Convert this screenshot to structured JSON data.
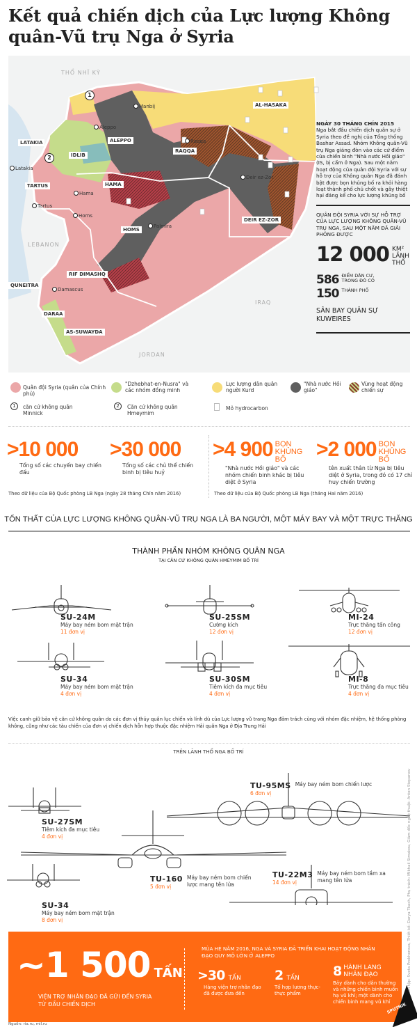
{
  "title": "Kết quả chiến dịch của Lực lượng Không quân-Vũ trụ Nga ở Syria",
  "map": {
    "countries": {
      "turkey": "THỔ NHĨ KỲ",
      "lebanon": "LEBANON",
      "iraq": "IRAQ",
      "jordan": "JORDAN"
    },
    "regions": {
      "latakia": "LATAKIA",
      "idlib": "IDLIB",
      "aleppo": "ALEPPO",
      "raqqa": "RAQQA",
      "al_hasaka": "AL-HASAKA",
      "tartus": "TARTUS",
      "hama": "HAMA",
      "homs": "HOMS",
      "deir_ez_zor": "DEIR EZ-ZOR",
      "rif_dimashq": "RIF DIMASHQ",
      "quneitra": "QUNEITRA",
      "daraa": "DARAA",
      "as_suwayda": "AS-SUWAYDA"
    },
    "cities": {
      "manbij": "Manbij",
      "aleppo": "Aleppo",
      "raqqa": "Raqqa",
      "latakia": "Latakia",
      "hama": "Hama",
      "tartus": "Tartus",
      "homs": "Homs",
      "palmira": "Palmira",
      "deir_ez_zor": "Deir ez-Zor",
      "damascus": "Damascus"
    },
    "markers": {
      "m1": "1",
      "m2": "2"
    },
    "colors": {
      "government": "#eba7a8",
      "nusra": "#c5dc8b",
      "kurd": "#f7dc78",
      "is": "#5f5f5f",
      "contested": "#8b3a2a"
    }
  },
  "panel": {
    "date": "NGÀY 30 THÁNG CHÍN 2015",
    "text": "Nga bắt đầu chiến dịch quân sự ở Syria theo đề nghị của Tổng thống Bashar Assad. Nhóm Không quân-Vũ trụ Nga giáng đòn vào các cứ điểm của chiến binh \"Nhà nước Hồi giáo\" (IS, bị cấm ở Nga). Sau một năm hoạt động của quân đội Syria với sự hỗ trợ của Không quân Nga đã đánh bật được bọn khủng bố ra khỏi hàng loạt thành phố chủ chốt và gây thiệt hại đáng kể cho lực lượng khủng bố",
    "liberated_intro": "QUÂN ĐỘI SYRIA VỚI SỰ HỖ TRỢ CỦA LỰC LƯỢNG KHÔNG QUÂN-VŨ TRỤ NGA, SAU MỘT NĂM ĐÃ GIẢI PHÓNG ĐƯỢC",
    "area_value": "12 000",
    "area_unit": "KM²",
    "area_label": "LÃNH THỔ",
    "settlements_value": "586",
    "settlements_label": "ĐIỂM DÂN CƯ, TRONG ĐÓ CÓ",
    "cities_value": "150",
    "cities_label": "THÀNH PHỐ",
    "airbase": "SÂN BAY QUÂN SỰ KUWEIRES"
  },
  "legend": [
    {
      "label": "Quân đội Syria (quân của Chính phủ)"
    },
    {
      "label": "\"Dzhebhat-en-Nusra\" và các nhóm đồng minh"
    },
    {
      "label": "Lực lượng dân quân người Kurd"
    },
    {
      "label": "\"Nhà nước Hồi giáo\""
    },
    {
      "label": "Vùng hoạt động chiến sự"
    },
    {
      "num": "1",
      "label": "căn cứ không quân Minnick"
    },
    {
      "num": "2",
      "label": "Căn cứ không quân Hmeymim"
    },
    {
      "label": "Mỏ hydrocarbon"
    }
  ],
  "stats": [
    {
      "prefix": ">",
      "value": "10 000",
      "unit": "",
      "desc": "Tổng số các chuyến bay chiến đấu"
    },
    {
      "prefix": ">",
      "value": "30 000",
      "unit": "",
      "desc": "Tổng số các chủ thể chiến binh bị tiêu huỷ"
    },
    {
      "prefix": ">",
      "value": "4 900",
      "unit": "BỌN KHỦNG BỐ",
      "desc": "\"Nhà nước Hồi giáo\" và các nhóm chiến binh khác bị tiêu diệt ở Syria"
    },
    {
      "prefix": ">",
      "value": "2 000",
      "unit": "BỌN KHỦNG BỐ",
      "desc": "tên xuất thân từ Nga bị tiêu diệt ở Syria, trong đó có 17 chỉ huy chiến trường"
    }
  ],
  "notes": {
    "left": "Theo dữ liệu của Bộ Quốc phòng LB Nga (ngày 28 tháng Chín năm 2016)",
    "right": "Theo dữ liệu của Bộ Quốc phòng LB Nga (tháng Hai năm 2016)"
  },
  "losses_heading": "TỔN THẤT CỦA LỰC LƯỢNG KHÔNG QUÂN-VŨ TRỤ NGA LÀ BA NGƯỜI, MỘT MÁY BAY VÀ MỘT TRỰC THĂNG",
  "group": {
    "title": "THÀNH PHẦN NHÓM KHÔNG QUÂN NGA",
    "subtitle": "TẠI CĂN CỨ KHÔNG QUÂN HMEYMIM BỐ TRÍ"
  },
  "hmeymim": [
    {
      "name": "SU-24M",
      "desc": "Máy bay ném bom mặt trận",
      "units": "11 đơn vị"
    },
    {
      "name": "SU-25SM",
      "desc": "Cường kích",
      "units": "12 đơn vị"
    },
    {
      "name": "MI-24",
      "desc": "Trực thăng tấn công",
      "units": "12 đơn vị"
    },
    {
      "name": "SU-34",
      "desc": "Máy bay ném bom mặt trận",
      "units": "4 đơn vị"
    },
    {
      "name": "SU-30SM",
      "desc": "Tiêm kích đa mục tiêu",
      "units": "4 đơn vị"
    },
    {
      "name": "MI-8",
      "desc": "Trực thăng đa mục tiêu",
      "units": "4 đơn vị"
    }
  ],
  "guard_text": "Việc canh giữ bảo vệ căn cứ không quân do các đơn vị thủy quân lục chiến và lính dù của Lực lượng vũ trang Nga đảm trách cùng với nhóm đặc nhiệm, hệ thống phòng không, cũng như các tàu chiến của đơn vị chiến dịch hỗn hợp thuộc đặc nhiệm Hải quân Nga ở Địa Trung Hải",
  "russia_heading": "TRÊN LÃNH THỔ NGA BỐ TRÍ",
  "russia": [
    {
      "name": "SU-27SM",
      "desc": "Tiêm kích đa mục tiêu",
      "units": "4 đơn vị"
    },
    {
      "name": "SU-34",
      "desc": "Máy bay ném bom mặt trận",
      "units": "8 đơn vị"
    },
    {
      "name": "TU-160",
      "desc": "Máy bay ném bom chiến lược mang tên lửa",
      "units": "5 đơn vị"
    },
    {
      "name": "TU-95MS",
      "desc": "Máy bay ném bom chiến lược",
      "units": "6 đơn vị"
    },
    {
      "name": "TU-22M3",
      "desc": "Máy bay ném bom tầm xa mang tên lửa",
      "units": "14 đơn vị"
    }
  ],
  "aid": {
    "value": "~1 500",
    "unit": "TẤN",
    "desc": "VIỆN TRỢ NHÂN ĐẠO ĐÃ GỬI ĐẾN SYRIA TỪ ĐẦU CHIẾN DỊCH",
    "aleppo_heading": "MÙA HÈ NĂM 2016, NGA VÀ SYRIA ĐÃ TRIỂN KHAI HOẠT ĐỘNG NHÂN ĐẠO QUY MÔ LỚN Ở ALEPPO",
    "items": [
      {
        "value": ">30",
        "unit": "TẤN",
        "desc": "Hàng viện trợ nhân đạo đã được đưa đến"
      },
      {
        "value": "2",
        "unit": "TẤN",
        "desc": "Tổ hợp lương thực-thực phẩm"
      },
      {
        "value": "8",
        "unit": "HÀNH LANG NHÂN ĐẠO",
        "desc": "Bảy dành cho dân thường và những chiến binh muốn hạ vũ khí; một dành cho chiến binh mang vũ khí"
      }
    ]
  },
  "credits": "Biên tập: Sveta Prokhorova, Thiết kế: Darya Tkach, Phụ trách: Mikhail Simakov, Giám đốc nghệ thuật: Anton Stepanov",
  "source": "Nguồn: ria.ru, mil.ru",
  "logo": "SPUTNIK",
  "accent": "#ff6a13"
}
